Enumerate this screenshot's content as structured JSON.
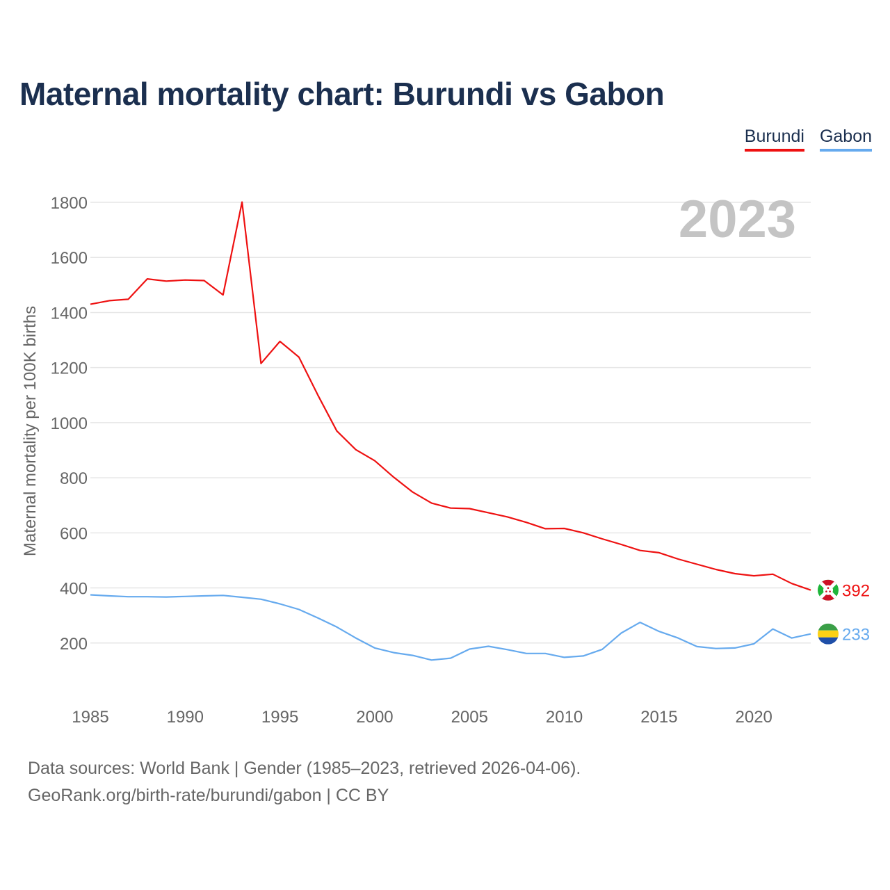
{
  "title": "Maternal mortality chart: Burundi vs Gabon",
  "legend": {
    "items": [
      {
        "label": "Burundi",
        "color": "#ee1111"
      },
      {
        "label": "Gabon",
        "color": "#66aaee"
      }
    ]
  },
  "year_watermark": "2023",
  "footer": {
    "sources": "Data sources: World Bank | Gender (1985–2023, retrieved 2026-04-06).",
    "credit": "GeoRank.org/birth-rate/burundi/gabon | CC BY"
  },
  "chart_data": {
    "type": "line",
    "title": "Maternal mortality chart: Burundi vs Gabon",
    "xlabel": "",
    "ylabel": "Maternal mortality per 100K births",
    "xlim": [
      1985,
      2023
    ],
    "ylim": [
      0,
      1800
    ],
    "x_ticks": [
      1985,
      1990,
      1995,
      2000,
      2005,
      2010,
      2015,
      2020
    ],
    "y_ticks": [
      200,
      400,
      600,
      800,
      1000,
      1200,
      1400,
      1600,
      1800
    ],
    "grid": true,
    "x": [
      1985,
      1986,
      1987,
      1988,
      1989,
      1990,
      1991,
      1992,
      1993,
      1994,
      1995,
      1996,
      1997,
      1998,
      1999,
      2000,
      2001,
      2002,
      2003,
      2004,
      2005,
      2006,
      2007,
      2008,
      2009,
      2010,
      2011,
      2012,
      2013,
      2014,
      2015,
      2016,
      2017,
      2018,
      2019,
      2020,
      2021,
      2022,
      2023
    ],
    "series": [
      {
        "name": "Burundi",
        "color": "#ee1111",
        "end_label": "392",
        "flag": "burundi-flag-icon",
        "values": [
          1430,
          1443,
          1448,
          1522,
          1514,
          1518,
          1516,
          1464,
          1801,
          1215,
          1295,
          1238,
          1100,
          970,
          902,
          862,
          802,
          748,
          708,
          690,
          688,
          673,
          658,
          638,
          615,
          616,
          600,
          578,
          558,
          536,
          528,
          505,
          486,
          467,
          452,
          444,
          450,
          416,
          392
        ]
      },
      {
        "name": "Gabon",
        "color": "#66aaee",
        "end_label": "233",
        "flag": "gabon-flag-icon",
        "values": [
          375,
          371,
          368,
          368,
          367,
          369,
          371,
          373,
          366,
          359,
          342,
          322,
          291,
          258,
          218,
          182,
          165,
          155,
          138,
          145,
          178,
          188,
          176,
          162,
          162,
          148,
          153,
          177,
          236,
          275,
          242,
          218,
          187,
          180,
          182,
          197,
          251,
          218,
          233
        ]
      }
    ]
  }
}
